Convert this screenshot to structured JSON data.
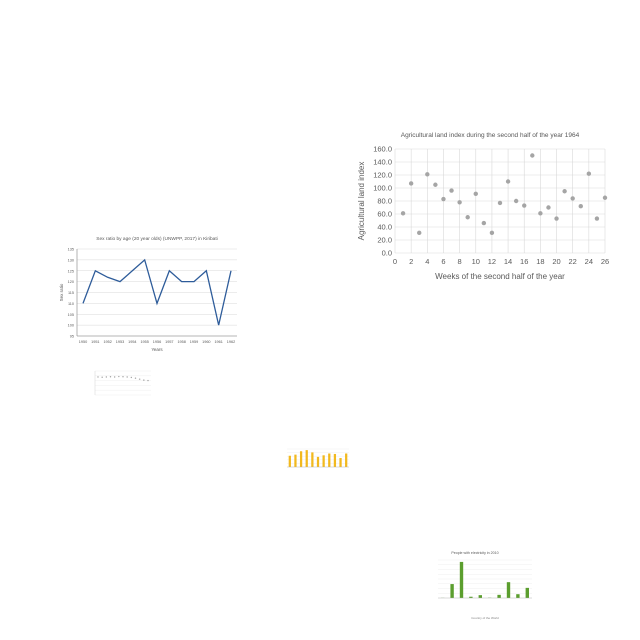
{
  "chart_data": [
    {
      "type": "scatter",
      "title": "Agricultural land index during the second half of the year 1964",
      "xlabel": "Weeks of the second half of the year",
      "ylabel": "Agricultural land index",
      "xlim": [
        0,
        26
      ],
      "ylim": [
        0,
        160
      ],
      "x_ticks": [
        "0",
        "2",
        "4",
        "6",
        "8",
        "10",
        "12",
        "14",
        "16",
        "18",
        "20",
        "22",
        "24",
        "26"
      ],
      "y_ticks": [
        "0.0",
        "20.0",
        "40.0",
        "60.0",
        "80.0",
        "100.0",
        "120.0",
        "140.0",
        "160.0"
      ],
      "grid": true,
      "colors": {
        "marker": "#a5a5a5",
        "grid": "#d9d9d9",
        "text": "#595959"
      },
      "points": [
        {
          "x": 1,
          "y": 61
        },
        {
          "x": 2,
          "y": 107
        },
        {
          "x": 3,
          "y": 31
        },
        {
          "x": 4,
          "y": 121
        },
        {
          "x": 5,
          "y": 105
        },
        {
          "x": 6,
          "y": 83
        },
        {
          "x": 7,
          "y": 96
        },
        {
          "x": 8,
          "y": 78
        },
        {
          "x": 9,
          "y": 55
        },
        {
          "x": 10,
          "y": 91
        },
        {
          "x": 11,
          "y": 46
        },
        {
          "x": 12,
          "y": 31
        },
        {
          "x": 13,
          "y": 77
        },
        {
          "x": 14,
          "y": 110
        },
        {
          "x": 15,
          "y": 80
        },
        {
          "x": 16,
          "y": 73
        },
        {
          "x": 17,
          "y": 150
        },
        {
          "x": 18,
          "y": 61
        },
        {
          "x": 19,
          "y": 70
        },
        {
          "x": 20,
          "y": 53
        },
        {
          "x": 21,
          "y": 95
        },
        {
          "x": 22,
          "y": 84
        },
        {
          "x": 23,
          "y": 72
        },
        {
          "x": 24,
          "y": 122
        },
        {
          "x": 25,
          "y": 53
        },
        {
          "x": 26,
          "y": 85
        }
      ]
    },
    {
      "type": "line",
      "title": "Sex ratio by age (20 year olds) (UNWPP, 2017) in Kiribati",
      "xlabel": "Years",
      "ylabel": "Sex ratio",
      "categories": [
        "1950",
        "1951",
        "1952",
        "1953",
        "1954",
        "1955",
        "1956",
        "1957",
        "1958",
        "1959",
        "1960",
        "1961",
        "1962"
      ],
      "y_ticks": [
        "95",
        "100",
        "105",
        "110",
        "115",
        "120",
        "125",
        "130",
        "135"
      ],
      "ylim": [
        95,
        135
      ],
      "grid": true,
      "colors": {
        "line": "#2e5c9a",
        "grid": "#d9d9d9",
        "text": "#595959"
      },
      "values": [
        110,
        125,
        122,
        120,
        125,
        130,
        110,
        125,
        120,
        120,
        125,
        100,
        125
      ]
    },
    {
      "type": "scatter",
      "title": "",
      "xlabel": "",
      "ylabel": "",
      "colors": {
        "marker": "#a5a5a5",
        "grid": "#e4e4e4"
      },
      "values": [
        75,
        74,
        75,
        76,
        75,
        77,
        76,
        75,
        73,
        70,
        66,
        62,
        60
      ]
    },
    {
      "type": "bar",
      "title": "",
      "xlabel": "",
      "ylabel": "",
      "colors": {
        "bar": "#f2b91e",
        "grid": "#e4e4e4"
      },
      "values": [
        50,
        55,
        70,
        75,
        65,
        45,
        52,
        60,
        58,
        40,
        60
      ]
    },
    {
      "type": "bar",
      "title": "People with electricity in 2010",
      "xlabel": "Country of the World",
      "ylabel": "",
      "colors": {
        "bar": "#5b9e2e",
        "grid": "#e4e4e4"
      },
      "values": [
        2,
        220,
        570,
        20,
        45,
        4,
        50,
        250,
        60,
        160
      ]
    }
  ]
}
